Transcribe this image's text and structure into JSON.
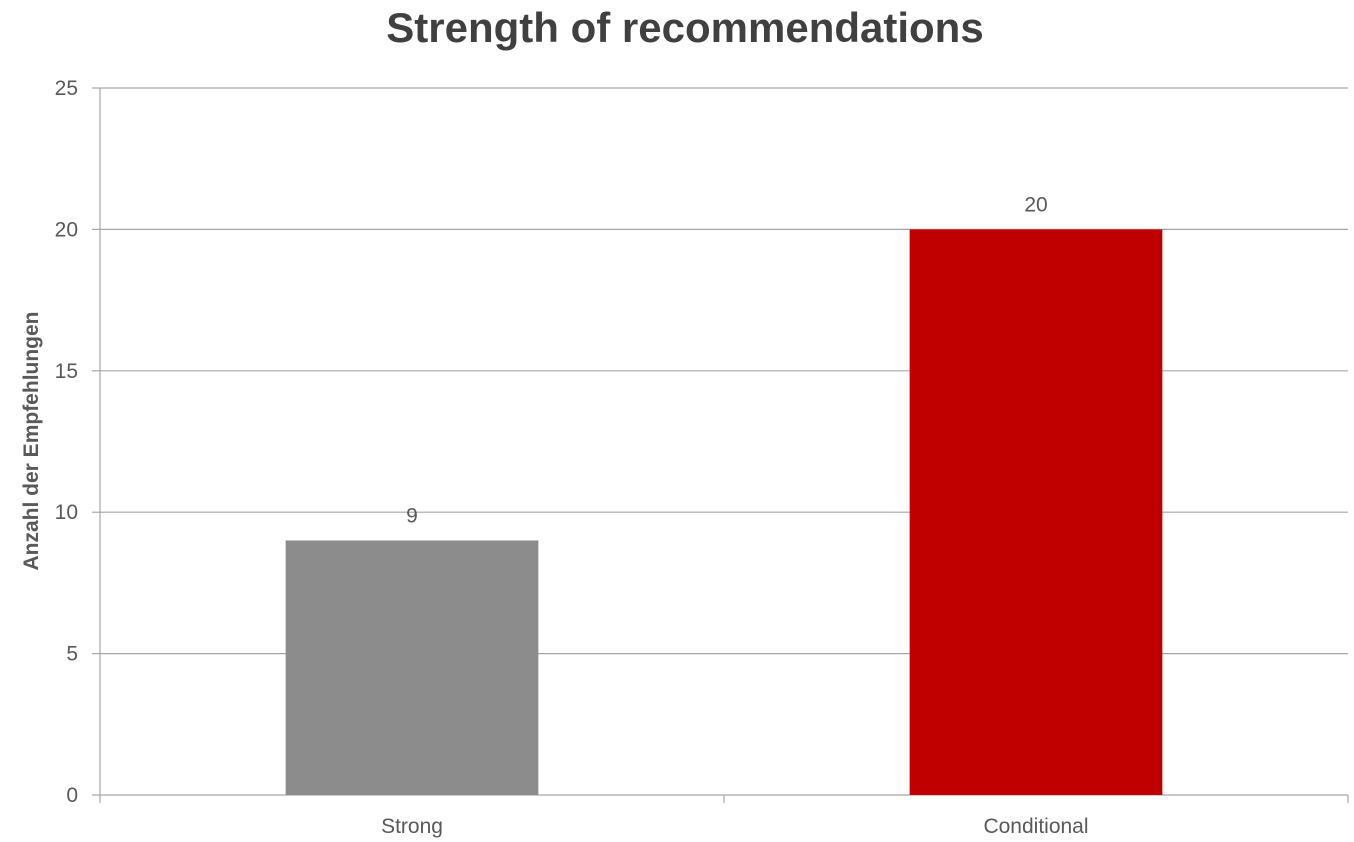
{
  "chart_data": {
    "type": "bar",
    "title": "Strength of recommendations",
    "xlabel": "",
    "ylabel": "Anzahl der Empfehlungen",
    "categories": [
      "Strong",
      "Conditional"
    ],
    "values": [
      9,
      20
    ],
    "bar_colors": [
      "#8c8c8c",
      "#c00000"
    ],
    "data_labels": [
      "9",
      "20"
    ],
    "ylim": [
      0,
      25
    ],
    "yticks": [
      0,
      5,
      10,
      15,
      20,
      25
    ],
    "ytick_labels": [
      "0",
      "5",
      "10",
      "15",
      "20",
      "25"
    ],
    "grid": true,
    "legend": "none"
  }
}
